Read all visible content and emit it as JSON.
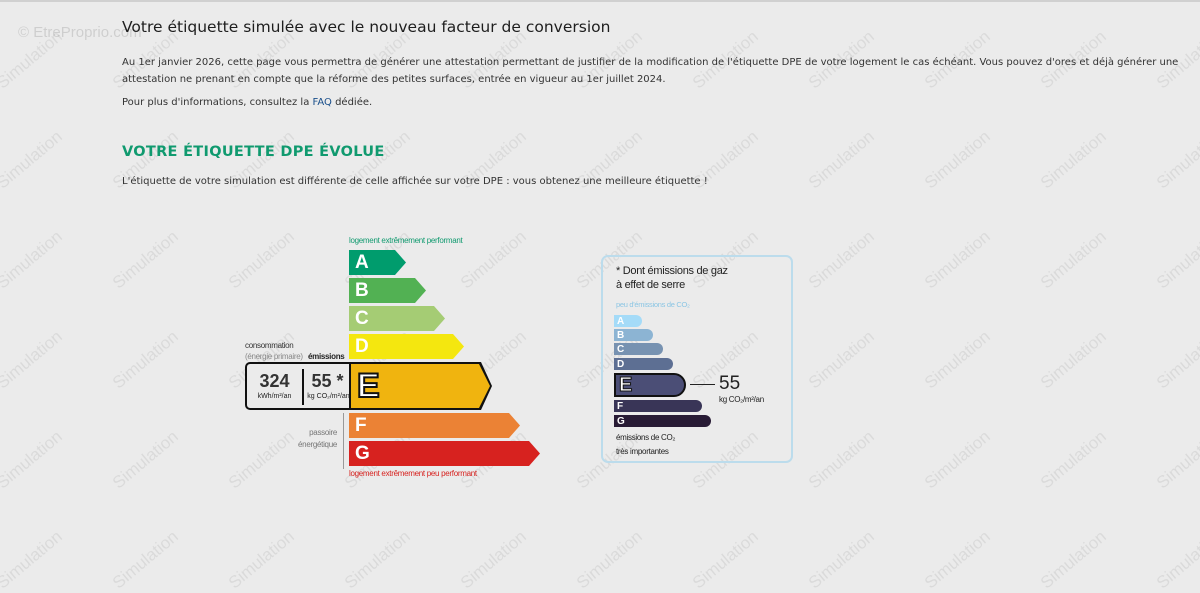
{
  "watermark": {
    "brand": "© EtreProprio.com",
    "stamp": "Simulation"
  },
  "title": "Votre étiquette simulée avec le nouveau facteur de conversion",
  "intro": "Au 1er janvier 2026, cette page vous permettra de générer une attestation permettant de justifier de la modification de l'étiquette DPE de votre logement le cas échéant. Vous pouvez d'ores et déjà générer une attestation ne prenant en compte que la réforme des petites surfaces, entrée en vigueur au 1er juillet 2024.",
  "info": {
    "before": "Pour plus d'informations, consultez la ",
    "link": "FAQ",
    "after": " dédiée."
  },
  "section_title": "VOTRE ÉTIQUETTE DPE ÉVOLUE",
  "section_text": "L'étiquette de votre simulation est différente de celle affichée sur votre DPE : vous obtenez une meilleure étiquette !",
  "dpe": {
    "top_label": "logement extrêmement performant",
    "bottom_label": "logement extrêmement peu performant",
    "consumption_label": "consommation",
    "consumption_sub": "(énergie primaire)",
    "emissions_label": "émissions",
    "consumption_value": "324",
    "consumption_unit": "kWh/m²/an",
    "emissions_value": "55 *",
    "emissions_unit": "kg CO₂/m²/an",
    "passoire_1": "passoire",
    "passoire_2": "énergétique",
    "current_class": "E",
    "classes": [
      {
        "l": "A",
        "c": "#009c6d"
      },
      {
        "l": "B",
        "c": "#52b153"
      },
      {
        "l": "C",
        "c": "#a5cc74"
      },
      {
        "l": "D",
        "c": "#f4e70f"
      },
      {
        "l": "E",
        "c": "#f0b40f"
      },
      {
        "l": "F",
        "c": "#eb8235"
      },
      {
        "l": "G",
        "c": "#d7221f"
      }
    ]
  },
  "ges": {
    "title_1": "* Dont émissions de gaz",
    "title_2": "à effet de serre",
    "top_label": "peu d'émissions de CO₂",
    "bottom_1": "émissions de CO₂",
    "bottom_2": "très importantes",
    "value": "55",
    "unit": "kg CO₂/m²/an",
    "current_class": "E",
    "classes": [
      {
        "l": "A",
        "c": "#a4dbf8"
      },
      {
        "l": "B",
        "c": "#8cb4d3"
      },
      {
        "l": "C",
        "c": "#7792b1"
      },
      {
        "l": "D",
        "c": "#5d6f93"
      },
      {
        "l": "E",
        "c": "#4b4e76"
      },
      {
        "l": "F",
        "c": "#393557"
      },
      {
        "l": "G",
        "c": "#281b35"
      }
    ]
  }
}
